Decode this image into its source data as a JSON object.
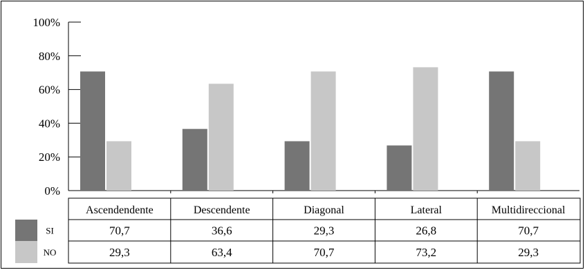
{
  "chart_data": {
    "type": "bar",
    "categories": [
      "Ascendendente",
      "Descendente",
      "Diagonal",
      "Lateral",
      "Multidireccional"
    ],
    "series": [
      {
        "name": "SI",
        "values": [
          70.7,
          36.6,
          29.3,
          26.8,
          70.7
        ],
        "labels": [
          "70,7",
          "36,6",
          "29,3",
          "26,8",
          "70,7"
        ],
        "color": "#757575"
      },
      {
        "name": "NO",
        "values": [
          29.3,
          63.4,
          70.7,
          73.2,
          29.3
        ],
        "labels": [
          "29,3",
          "63,4",
          "70,7",
          "73,2",
          "29,3"
        ],
        "color": "#c7c7c7"
      }
    ],
    "y_ticks": [
      "0%",
      "20%",
      "40%",
      "60%",
      "80%",
      "100%"
    ],
    "ylim": [
      0,
      100
    ],
    "grid": false,
    "legend": "data-table-bottom"
  }
}
